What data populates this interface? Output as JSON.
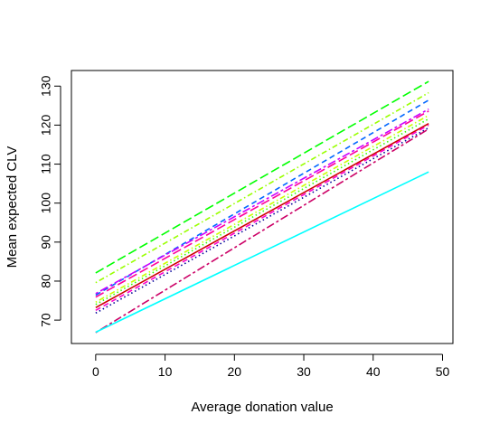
{
  "chart_data": {
    "type": "line",
    "title": "",
    "xlabel": "Average donation value",
    "ylabel": "Mean expected CLV",
    "xlim": [
      -3.5,
      51.5
    ],
    "ylim": [
      64,
      134
    ],
    "x_ticks": [
      0,
      10,
      20,
      30,
      40,
      50
    ],
    "y_ticks": [
      70,
      80,
      90,
      100,
      110,
      120,
      130
    ],
    "x_tick_labels": [
      "0",
      "10",
      "20",
      "30",
      "40",
      "50"
    ],
    "y_tick_labels": [
      "70",
      "80",
      "90",
      "100",
      "110",
      "120",
      "130"
    ],
    "grid": false,
    "legend": "none",
    "series": [
      {
        "x": [
          0,
          48
        ],
        "values": [
          82.1,
          131.2
        ],
        "color": "#00ff00",
        "dash": "longdash"
      },
      {
        "x": [
          0,
          48
        ],
        "values": [
          79.6,
          128.3
        ],
        "color": "#99ff00",
        "dash": "dotdash"
      },
      {
        "x": [
          0,
          48
        ],
        "values": [
          76.4,
          126.4
        ],
        "color": "#0066ff",
        "dash": "dashed"
      },
      {
        "x": [
          0,
          48
        ],
        "values": [
          76.8,
          124.1
        ],
        "color": "#cc00ff",
        "dash": "twodash"
      },
      {
        "x": [
          0,
          48
        ],
        "values": [
          75.9,
          123.6
        ],
        "color": "#ff0099",
        "dash": "longdash"
      },
      {
        "x": [
          0,
          48
        ],
        "values": [
          74.6,
          122.5
        ],
        "color": "#ccff00",
        "dash": "dotdash"
      },
      {
        "x": [
          0,
          48
        ],
        "values": [
          74.0,
          121.6
        ],
        "color": "#33ff00",
        "dash": "dotted"
      },
      {
        "x": [
          0,
          48
        ],
        "values": [
          73.2,
          120.4
        ],
        "color": "#cc0000",
        "dash": "solid"
      },
      {
        "x": [
          0,
          48
        ],
        "values": [
          72.5,
          120.0
        ],
        "color": "#ff00cc",
        "dash": "dashed"
      },
      {
        "x": [
          0,
          48
        ],
        "values": [
          71.8,
          119.3
        ],
        "color": "#000099",
        "dash": "dotted"
      },
      {
        "x": [
          0,
          48
        ],
        "values": [
          66.8,
          119.0
        ],
        "color": "#cc0066",
        "dash": "twodash"
      },
      {
        "x": [
          0,
          48
        ],
        "values": [
          66.9,
          108.0
        ],
        "color": "#00ffff",
        "dash": "solid"
      }
    ]
  }
}
